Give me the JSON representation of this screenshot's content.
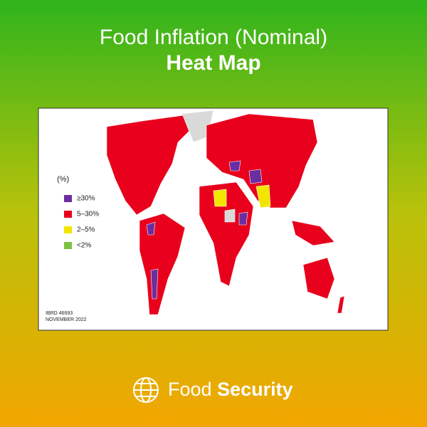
{
  "header": {
    "title": "Food Inflation (Nominal)",
    "subtitle": "Heat Map"
  },
  "map": {
    "legend": {
      "title": "(%)",
      "items": [
        {
          "label": "≥30%",
          "color": "#6b2ea0"
        },
        {
          "label": "5–30%",
          "color": "#e8001c"
        },
        {
          "label": "2–5%",
          "color": "#f2e600"
        },
        {
          "label": "<2%",
          "color": "#7cc242"
        }
      ]
    },
    "source": [
      "IBRD 46693",
      "NOVEMBER 2022"
    ]
  },
  "footer": {
    "brand_light": "Food",
    "brand_bold": "Security"
  }
}
